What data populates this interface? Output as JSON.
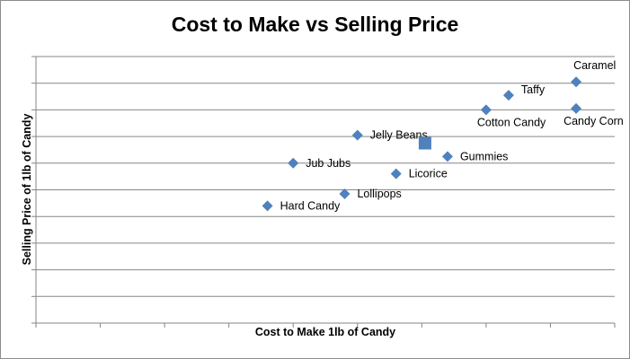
{
  "chart_data": {
    "type": "scatter",
    "title": "Cost to Make vs Selling Price",
    "xlabel": "Cost to Make 1lb of Candy",
    "ylabel": "Selling Price of 1lb of Candy",
    "xlim": [
      0,
      9
    ],
    "ylim": [
      0,
      10
    ],
    "x_tick_labels": false,
    "y_tick_labels": false,
    "grid": "horizontal",
    "legend": "none",
    "marker_color": "#4f81bd",
    "points": [
      {
        "label": "Hard Candy",
        "x": 3.6,
        "y": 4.4
      },
      {
        "label": "Jub Jubs",
        "x": 4.0,
        "y": 6.0
      },
      {
        "label": "Lollipops",
        "x": 4.8,
        "y": 4.85
      },
      {
        "label": "Jelly Beans",
        "x": 5.0,
        "y": 7.05
      },
      {
        "label": "Licorice",
        "x": 5.6,
        "y": 5.6
      },
      {
        "label": "Gummies",
        "x": 6.4,
        "y": 6.25
      },
      {
        "label": "Cotton Candy",
        "x": 7.0,
        "y": 8.0
      },
      {
        "label": "Taffy",
        "x": 7.35,
        "y": 8.55
      },
      {
        "label": "Caramel",
        "x": 8.4,
        "y": 9.05
      },
      {
        "label": "Candy Corn",
        "x": 8.4,
        "y": 8.05
      }
    ],
    "highlight_point": {
      "x": 6.05,
      "y": 6.75,
      "marker": "square"
    }
  }
}
